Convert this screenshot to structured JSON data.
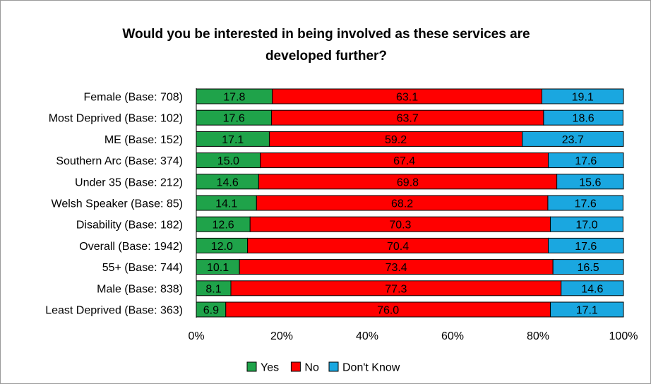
{
  "chart_data": {
    "type": "bar",
    "orientation": "horizontal",
    "stacked": true,
    "title_lines": [
      "Would you be interested in being involved as these services are",
      "developed further?"
    ],
    "categories": [
      "Female (Base: 708)",
      "Most Deprived (Base: 102)",
      "ME (Base: 152)",
      "Southern Arc (Base: 374)",
      "Under 35 (Base: 212)",
      "Welsh Speaker (Base: 85)",
      "Disability (Base: 182)",
      "Overall (Base: 1942)",
      "55+ (Base: 744)",
      "Male (Base: 838)",
      "Least Deprived (Base: 363)"
    ],
    "series": [
      {
        "name": "Yes",
        "color": "#1fa34a",
        "values": [
          17.8,
          17.6,
          17.1,
          15.0,
          14.6,
          14.1,
          12.6,
          12.0,
          10.1,
          8.1,
          6.9
        ],
        "labels": [
          "17.8",
          "17.6",
          "17.1",
          "15.0",
          "14.6",
          "14.1",
          "12.6",
          "12.0",
          "10.1",
          "8.1",
          "6.9"
        ]
      },
      {
        "name": "No",
        "color": "#ff0000",
        "values": [
          63.1,
          63.7,
          59.2,
          67.4,
          69.8,
          68.2,
          70.3,
          70.4,
          73.4,
          77.3,
          76.0
        ],
        "labels": [
          "63.1",
          "63.7",
          "59.2",
          "67.4",
          "69.8",
          "68.2",
          "70.3",
          "70.4",
          "73.4",
          "77.3",
          "76.0"
        ]
      },
      {
        "name": "Don't Know",
        "color": "#1aa7e0",
        "values": [
          19.1,
          18.6,
          23.7,
          17.6,
          15.6,
          17.6,
          17.0,
          17.6,
          16.5,
          14.6,
          17.1
        ],
        "labels": [
          "19.1",
          "18.6",
          "23.7",
          "17.6",
          "15.6",
          "17.6",
          "17.0",
          "17.6",
          "16.5",
          "14.6",
          "17.1"
        ]
      }
    ],
    "x_axis": {
      "min": 0,
      "max": 100,
      "ticks": [
        0,
        20,
        40,
        60,
        80,
        100
      ],
      "tick_labels": [
        "0%",
        "20%",
        "40%",
        "60%",
        "80%",
        "100%"
      ]
    },
    "grid": false,
    "legend": "bottom",
    "xlabel": "",
    "ylabel": ""
  }
}
